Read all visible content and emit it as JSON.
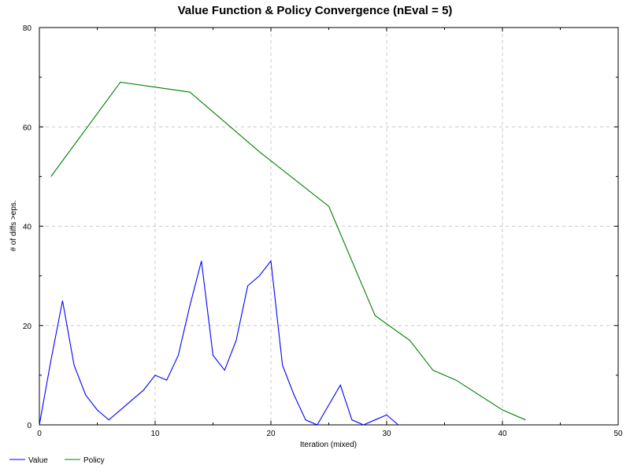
{
  "chart_data": {
    "type": "line",
    "title": "Value Function & Policy Convergence (nEval = 5)",
    "xlabel": "Iteration (mixed)",
    "ylabel": "# of diffs >eps.",
    "xlim": [
      0,
      50
    ],
    "ylim": [
      0,
      80
    ],
    "xticks": [
      0,
      10,
      20,
      30,
      40,
      50
    ],
    "yticks": [
      0,
      20,
      40,
      60,
      80
    ],
    "grid": true,
    "legend_position": "bottom-left",
    "series": [
      {
        "name": "Value",
        "color": "#0000ff",
        "points": [
          [
            0,
            0
          ],
          [
            1,
            13
          ],
          [
            2,
            25
          ],
          [
            3,
            12
          ],
          [
            4,
            6
          ],
          [
            5,
            3
          ],
          [
            6,
            1
          ],
          [
            7,
            3
          ],
          [
            8,
            5
          ],
          [
            9,
            7
          ],
          [
            10,
            10
          ],
          [
            11,
            9
          ],
          [
            12,
            14
          ],
          [
            13,
            24
          ],
          [
            14,
            33
          ],
          [
            15,
            14
          ],
          [
            16,
            11
          ],
          [
            17,
            17
          ],
          [
            18,
            28
          ],
          [
            19,
            30
          ],
          [
            20,
            33
          ],
          [
            21,
            12
          ],
          [
            22,
            6
          ],
          [
            23,
            1
          ],
          [
            24,
            0
          ],
          [
            25,
            4
          ],
          [
            26,
            8
          ],
          [
            27,
            1
          ],
          [
            28,
            0
          ],
          [
            29,
            1
          ],
          [
            30,
            2
          ],
          [
            31,
            0
          ]
        ]
      },
      {
        "name": "Policy",
        "color": "#008000",
        "points": [
          [
            1,
            50
          ],
          [
            7,
            69
          ],
          [
            13,
            67
          ],
          [
            19,
            55
          ],
          [
            25,
            44
          ],
          [
            29,
            22
          ],
          [
            32,
            17
          ],
          [
            34,
            11
          ],
          [
            36,
            9
          ],
          [
            40,
            3
          ],
          [
            42,
            1
          ]
        ]
      }
    ]
  }
}
